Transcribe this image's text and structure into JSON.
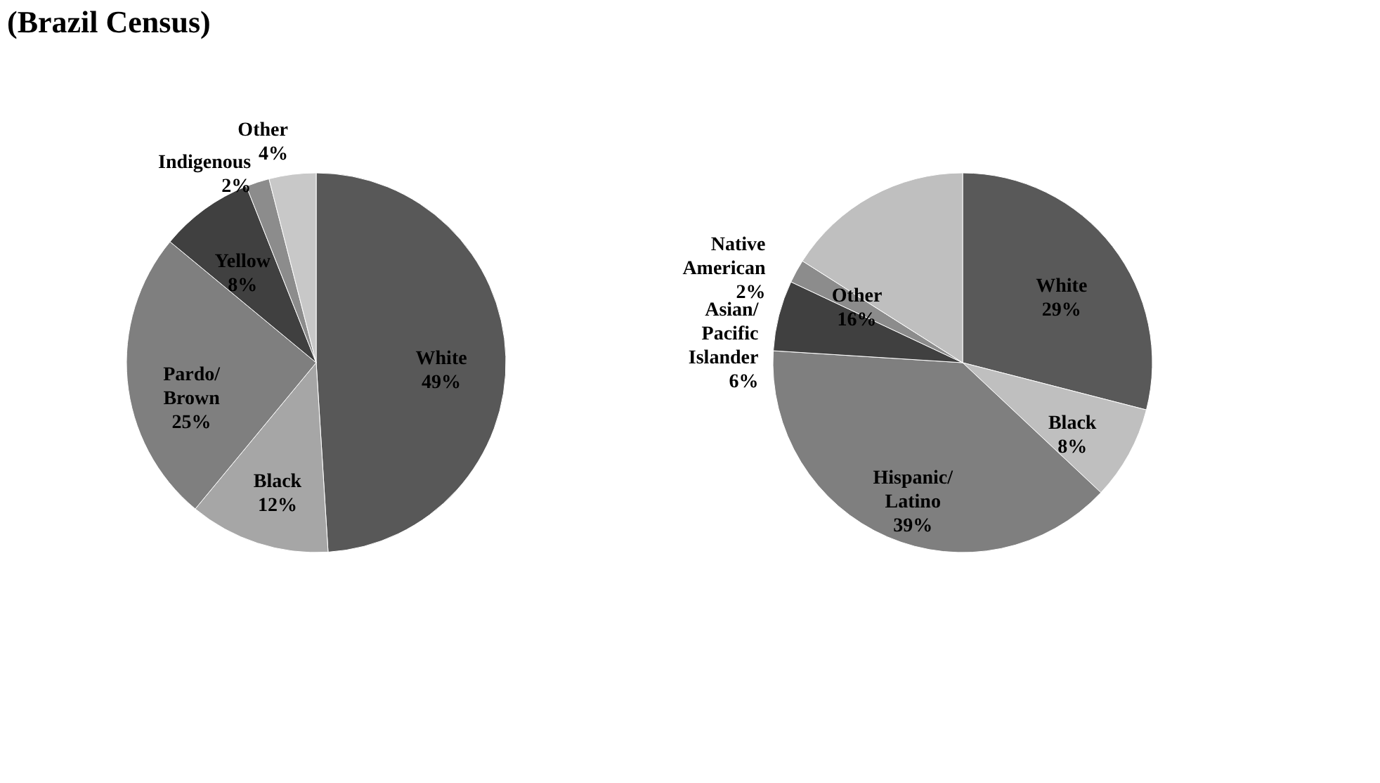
{
  "chart_data": [
    {
      "type": "pie",
      "title": "(Brazil Census)",
      "categories": [
        "White",
        "Black",
        "Pardo/Brown",
        "Yellow",
        "Indigenous",
        "Other"
      ],
      "values": [
        49,
        12,
        25,
        8,
        2,
        4
      ],
      "value_labels": [
        "49%",
        "12%",
        "25%",
        "8%",
        "2%",
        "4%"
      ],
      "colors": [
        "#585858",
        "#a6a6a6",
        "#7f7f7f",
        "#404040",
        "#8c8c8c",
        "#c8c8c8"
      ]
    },
    {
      "type": "pie",
      "categories": [
        "White",
        "Black",
        "Hispanic/Latino",
        "Asian/Pacific Islander",
        "Native American",
        "Other"
      ],
      "values": [
        29,
        8,
        39,
        6,
        2,
        16
      ],
      "value_labels": [
        "29%",
        "8%",
        "39%",
        "6%",
        "2%",
        "16%"
      ],
      "colors": [
        "#595959",
        "#bfbfbf",
        "#7f7f7f",
        "#404040",
        "#8c8c8c",
        "#bfbfbf"
      ]
    }
  ]
}
